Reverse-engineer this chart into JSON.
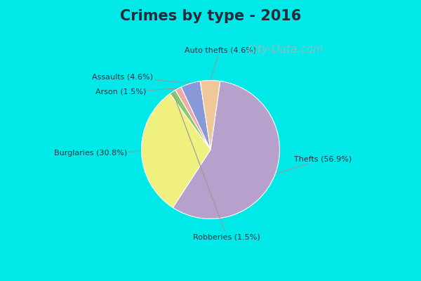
{
  "title": "Crimes by type - 2016",
  "title_fontsize": 15,
  "title_fontweight": "bold",
  "title_color": "#2a2a3a",
  "bg_cyan": "#00e8e8",
  "bg_main": "#d8ede4",
  "slices": [
    {
      "label": "Thefts (56.9%)",
      "value": 56.9,
      "color": "#b8a0cc"
    },
    {
      "label": "Burglaries (30.8%)",
      "value": 30.8,
      "color": "#f0f080"
    },
    {
      "label": "Robberies (1.5%)",
      "value": 1.5,
      "color": "#88c870"
    },
    {
      "label": "Arson (1.5%)",
      "value": 1.5,
      "color": "#f0a8a8"
    },
    {
      "label": "Assaults (4.6%)",
      "value": 4.6,
      "color": "#8898d8"
    },
    {
      "label": "Auto thefts (4.6%)",
      "value": 4.6,
      "color": "#f0c898"
    }
  ],
  "startangle": 82,
  "watermark": "City-Data.com",
  "watermark_color": "#9bbcbc",
  "watermark_fontsize": 11,
  "label_fontsize": 8,
  "label_color": "#303040",
  "line_color": "#999999"
}
